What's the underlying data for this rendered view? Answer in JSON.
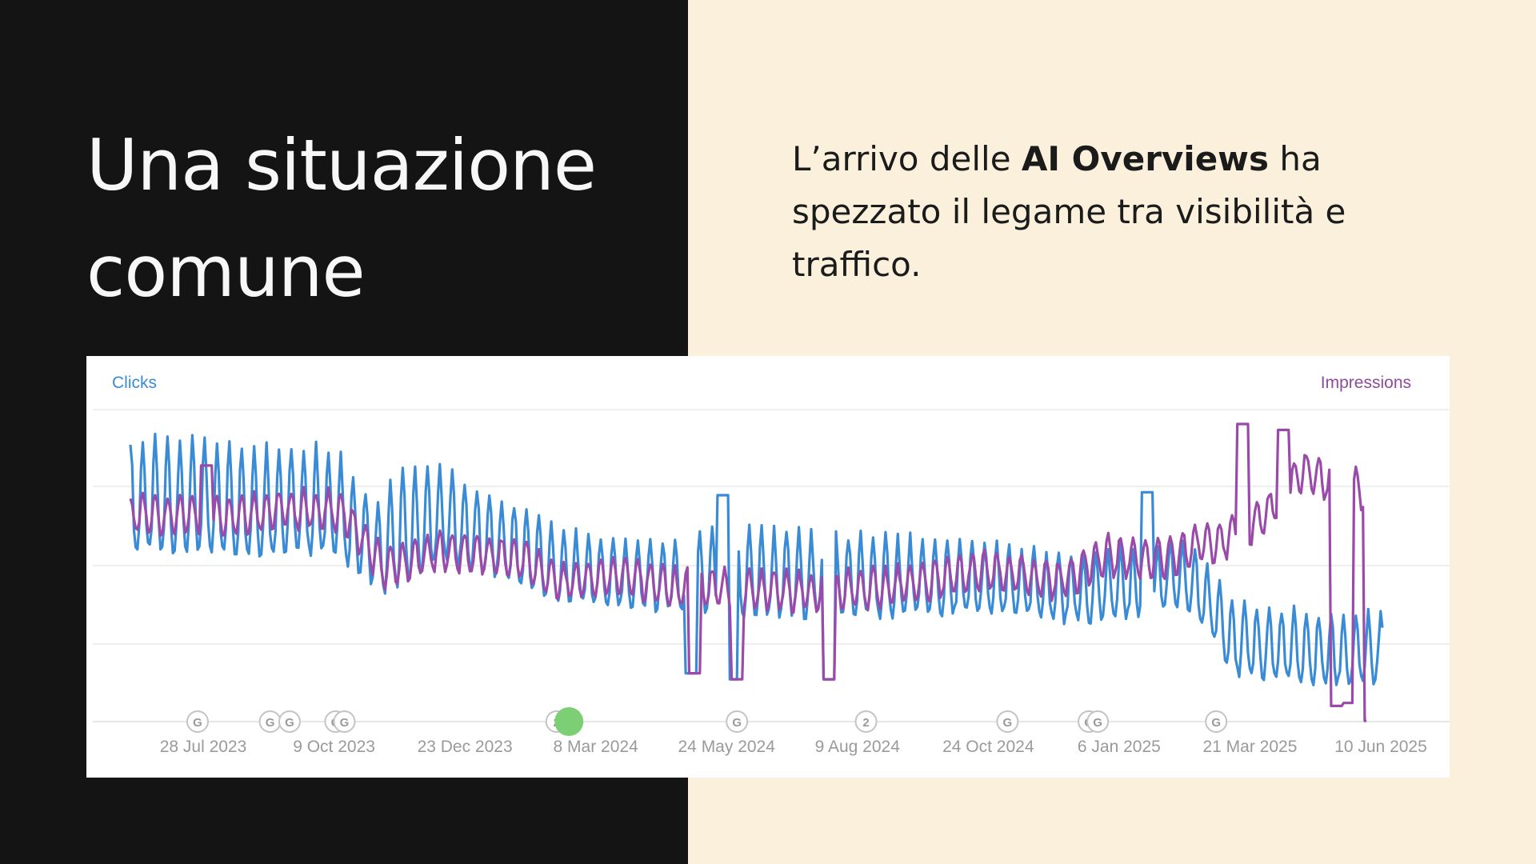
{
  "slide": {
    "title_line1": "Una situazione",
    "title_line2": "comune",
    "subtitle_before": "L’arrivo delle ",
    "subtitle_bold": "AI Overviews",
    "subtitle_after": " ha spezzato il legame tra visibilità e traffico."
  },
  "colors": {
    "left_background": "#141414",
    "right_background": "#fbf0db",
    "clicks": "#3a8bd6",
    "impressions": "#9a4aa8",
    "marker_highlight": "#7ccf74"
  },
  "chart_data": {
    "type": "line",
    "left_axis_label": "Clicks",
    "right_axis_label": "Impressions",
    "x_tick_labels": [
      "28 Jul 2023",
      "9 Oct 2023",
      "23 Dec 2023",
      "8 Mar 2024",
      "24 May 2024",
      "9 Aug 2024",
      "24 Oct 2024",
      "6 Jan 2025",
      "21 Mar 2025",
      "10 Jun 2025"
    ],
    "x_range": [
      "2023-07-08",
      "2025-06-15"
    ],
    "y_range": [
      0,
      1
    ],
    "y_axis_values_shown": false,
    "grid": "horizontal",
    "series_note": "values are relative (0-1) since the chart prints no axis values; weekly oscillation between weekday peak and weekend trough",
    "series": [
      {
        "name": "Clicks",
        "color": "#3a8bd6",
        "weekly_peaks": [
          [
            "2023-07-08",
            0.95
          ],
          [
            "2023-08-15",
            0.96
          ],
          [
            "2023-09-15",
            0.93
          ],
          [
            "2023-10-05",
            0.93
          ],
          [
            "2023-10-31",
            0.92
          ],
          [
            "2023-11-12",
            0.82
          ],
          [
            "2023-11-28",
            0.72
          ],
          [
            "2023-12-05",
            0.85
          ],
          [
            "2024-01-01",
            0.86
          ],
          [
            "2024-01-20",
            0.78
          ],
          [
            "2024-02-15",
            0.72
          ],
          [
            "2024-03-07",
            0.65
          ],
          [
            "2024-04-10",
            0.62
          ],
          [
            "2024-05-12",
            0.6
          ],
          [
            "2024-06-10",
            0.66
          ],
          [
            "2024-08-01",
            0.63
          ],
          [
            "2024-09-15",
            0.62
          ],
          [
            "2024-11-01",
            0.6
          ],
          [
            "2024-12-22",
            0.57
          ],
          [
            "2025-01-25",
            0.58
          ],
          [
            "2025-02-15",
            0.6
          ],
          [
            "2025-03-01",
            0.58
          ],
          [
            "2025-03-25",
            0.4
          ],
          [
            "2025-05-12",
            0.36
          ],
          [
            "2025-06-05",
            0.36
          ]
        ],
        "weekly_troughs": [
          [
            "2023-07-08",
            0.58
          ],
          [
            "2023-09-15",
            0.57
          ],
          [
            "2023-10-31",
            0.57
          ],
          [
            "2023-11-28",
            0.44
          ],
          [
            "2024-01-01",
            0.55
          ],
          [
            "2024-02-15",
            0.46
          ],
          [
            "2024-03-07",
            0.4
          ],
          [
            "2024-04-10",
            0.39
          ],
          [
            "2024-05-12",
            0.38
          ],
          [
            "2024-06-10",
            0.36
          ],
          [
            "2024-09-15",
            0.36
          ],
          [
            "2024-11-01",
            0.37
          ],
          [
            "2024-12-22",
            0.34
          ],
          [
            "2025-01-25",
            0.36
          ],
          [
            "2025-02-15",
            0.4
          ],
          [
            "2025-03-01",
            0.37
          ],
          [
            "2025-03-25",
            0.16
          ],
          [
            "2025-05-12",
            0.13
          ],
          [
            "2025-06-05",
            0.13
          ]
        ],
        "dips": [
          [
            "2024-05-20",
            0.16
          ],
          [
            "2024-06-12",
            0.14
          ],
          [
            "2024-08-06",
            0.14
          ]
        ],
        "spikes": [
          [
            "2024-06-07",
            0.76
          ],
          [
            "2025-02-02",
            0.77
          ]
        ]
      },
      {
        "name": "Impressions",
        "color": "#9a4aa8",
        "level_points": [
          [
            "2023-07-08",
            0.7
          ],
          [
            "2023-09-01",
            0.7
          ],
          [
            "2023-10-05",
            0.72
          ],
          [
            "2023-11-05",
            0.71
          ],
          [
            "2023-11-28",
            0.52
          ],
          [
            "2024-01-01",
            0.58
          ],
          [
            "2024-02-15",
            0.55
          ],
          [
            "2024-03-07",
            0.47
          ],
          [
            "2024-04-10",
            0.5
          ],
          [
            "2024-05-12",
            0.45
          ],
          [
            "2024-06-10",
            0.45
          ],
          [
            "2024-08-01",
            0.44
          ],
          [
            "2024-09-15",
            0.46
          ],
          [
            "2024-11-01",
            0.51
          ],
          [
            "2024-12-15",
            0.48
          ],
          [
            "2025-01-10",
            0.56
          ],
          [
            "2025-02-15",
            0.55
          ],
          [
            "2025-03-01",
            0.6
          ],
          [
            "2025-03-20",
            0.62
          ],
          [
            "2025-04-10",
            0.7
          ],
          [
            "2025-05-01",
            0.85
          ],
          [
            "2025-05-20",
            0.8
          ],
          [
            "2025-06-04",
            0.78
          ],
          [
            "2025-06-06",
            0.0
          ]
        ],
        "dips": [
          [
            "2024-05-22",
            0.16
          ],
          [
            "2024-06-15",
            0.14
          ],
          [
            "2024-08-06",
            0.14
          ],
          [
            "2025-05-20",
            0.05
          ],
          [
            "2025-05-26",
            0.06
          ]
        ],
        "spikes": [
          [
            "2023-08-20",
            0.86
          ],
          [
            "2025-03-28",
            1.0
          ],
          [
            "2025-04-20",
            0.98
          ]
        ]
      }
    ],
    "annotations": [
      {
        "date": "2023-08-15",
        "label": "G"
      },
      {
        "date": "2023-09-25",
        "label": "G"
      },
      {
        "date": "2023-10-06",
        "label": "G"
      },
      {
        "date": "2023-11-01",
        "label": "G"
      },
      {
        "date": "2023-11-06",
        "label": "G"
      },
      {
        "date": "2024-03-05",
        "label": "2"
      },
      {
        "date": "2024-03-12",
        "label": "",
        "highlight": true
      },
      {
        "date": "2024-06-15",
        "label": "G"
      },
      {
        "date": "2024-08-27",
        "label": "2"
      },
      {
        "date": "2024-11-15",
        "label": "G"
      },
      {
        "date": "2024-12-31",
        "label": "G"
      },
      {
        "date": "2025-01-05",
        "label": "G"
      },
      {
        "date": "2025-03-13",
        "label": "G"
      }
    ]
  }
}
